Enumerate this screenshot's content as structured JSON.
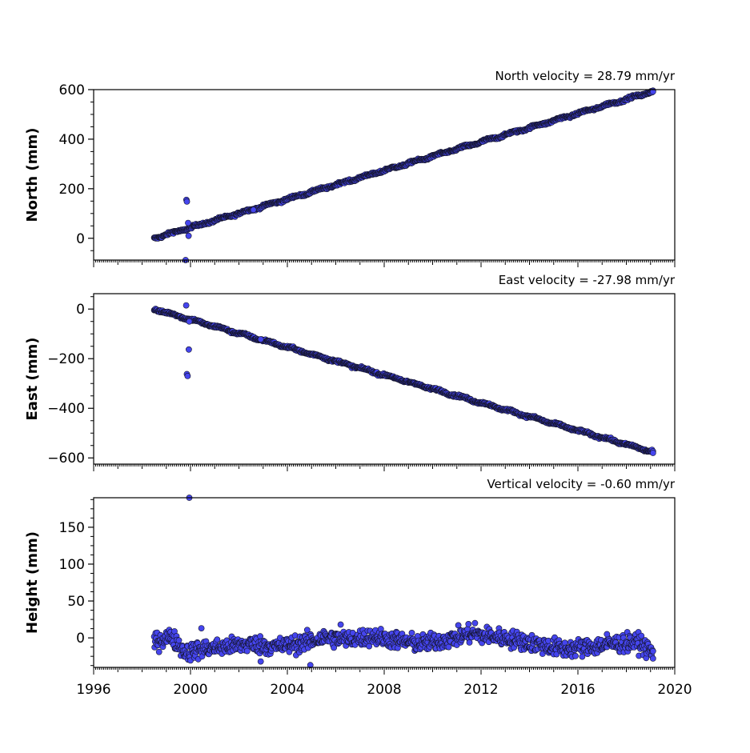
{
  "chart_data": [
    {
      "type": "scatter",
      "name": "north",
      "title": "North velocity = 28.79 mm/yr",
      "ylabel": "North (mm)",
      "xlim": [
        1996,
        2020
      ],
      "ylim": [
        -88,
        600
      ],
      "yticks": [
        0,
        200,
        400,
        600
      ],
      "xtick_labels_shown": false,
      "grid": false,
      "trend": {
        "x0": 1998.5,
        "y0": 0,
        "slope_per_year": 28.79,
        "x_end": 2019.1,
        "amp": 3,
        "noise": 2.5
      },
      "outliers": [
        {
          "x": 1999.83,
          "y": 155
        },
        {
          "x": 1999.85,
          "y": 148
        },
        {
          "x": 1999.9,
          "y": 62
        },
        {
          "x": 1999.92,
          "y": 10
        },
        {
          "x": 1999.8,
          "y": -88
        },
        {
          "x": 2002.6,
          "y": 115
        },
        {
          "x": 2019.1,
          "y": 592
        }
      ]
    },
    {
      "type": "scatter",
      "name": "east",
      "title": "East velocity = -27.98 mm/yr",
      "ylabel": "East (mm)",
      "xlim": [
        1996,
        2020
      ],
      "ylim": [
        -625,
        62
      ],
      "yticks": [
        0,
        -200,
        -400,
        -600
      ],
      "xtick_labels_shown": false,
      "grid": false,
      "trend": {
        "x0": 1998.5,
        "y0": 0,
        "slope_per_year": -27.98,
        "x_end": 2019.1,
        "amp": 3,
        "noise": 2.5
      },
      "outliers": [
        {
          "x": 1999.82,
          "y": 15
        },
        {
          "x": 1999.85,
          "y": -262
        },
        {
          "x": 1999.88,
          "y": -270
        },
        {
          "x": 1999.93,
          "y": -163
        },
        {
          "x": 1999.95,
          "y": -50
        },
        {
          "x": 2002.9,
          "y": -122
        },
        {
          "x": 2019.1,
          "y": -580
        }
      ]
    },
    {
      "type": "scatter",
      "name": "height",
      "title": "Vertical velocity = -0.60 mm/yr",
      "ylabel": "Height (mm)",
      "xlim": [
        1996,
        2020
      ],
      "ylim": [
        -40,
        190
      ],
      "yticks": [
        0,
        50,
        100,
        150
      ],
      "xticks": [
        1996,
        2000,
        2004,
        2008,
        2012,
        2016,
        2020
      ],
      "xtick_labels_shown": true,
      "grid": false,
      "wander": [
        {
          "x": 1998.5,
          "y": -5
        },
        {
          "x": 1999.2,
          "y": 2
        },
        {
          "x": 1999.8,
          "y": -20
        },
        {
          "x": 2000.5,
          "y": -15
        },
        {
          "x": 2001.5,
          "y": -12
        },
        {
          "x": 2002.5,
          "y": -8
        },
        {
          "x": 2003.5,
          "y": -12
        },
        {
          "x": 2004.5,
          "y": -8
        },
        {
          "x": 2005.5,
          "y": 0
        },
        {
          "x": 2006.5,
          "y": -2
        },
        {
          "x": 2007.5,
          "y": 2
        },
        {
          "x": 2008.5,
          "y": -3
        },
        {
          "x": 2009.5,
          "y": -8
        },
        {
          "x": 2010.5,
          "y": -3
        },
        {
          "x": 2011.5,
          "y": 5
        },
        {
          "x": 2012.5,
          "y": 2
        },
        {
          "x": 2013.5,
          "y": -3
        },
        {
          "x": 2014.5,
          "y": -10
        },
        {
          "x": 2015.5,
          "y": -15
        },
        {
          "x": 2016.5,
          "y": -12
        },
        {
          "x": 2017.5,
          "y": -8
        },
        {
          "x": 2018.5,
          "y": -6
        },
        {
          "x": 2019.1,
          "y": -20
        }
      ],
      "noise": 6,
      "x_start": 1998.5,
      "x_end": 2019.1,
      "outliers": [
        {
          "x": 1999.95,
          "y": 190
        },
        {
          "x": 2000.45,
          "y": 13
        },
        {
          "x": 2002.9,
          "y": -32
        },
        {
          "x": 2004.95,
          "y": -37
        },
        {
          "x": 2006.2,
          "y": 18
        },
        {
          "x": 2011.75,
          "y": 20
        },
        {
          "x": 2017.2,
          "y": 5
        },
        {
          "x": 2019.1,
          "y": -28
        }
      ]
    }
  ],
  "colors": {
    "fill": "#4545ee",
    "edge": "#141428"
  }
}
